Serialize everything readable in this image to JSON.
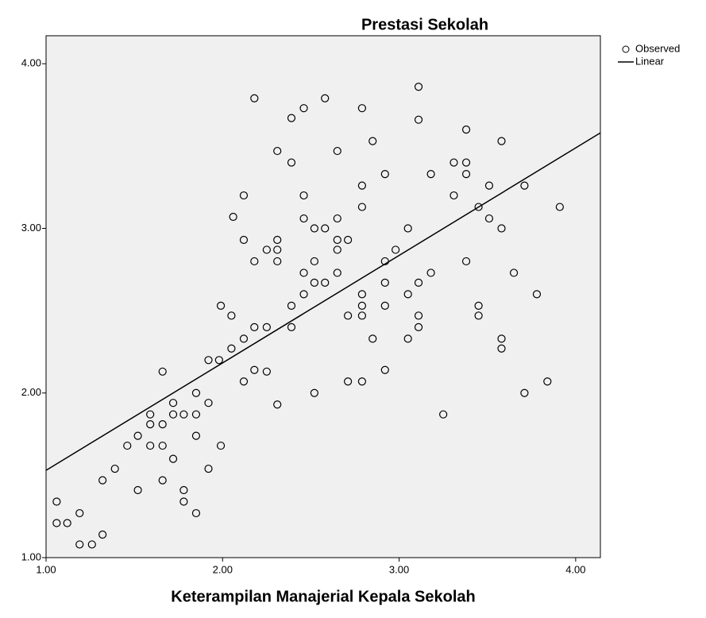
{
  "chart_data": {
    "type": "scatter",
    "title": "Prestasi Sekolah",
    "xlabel": "Keterampilan Manajerial Kepala Sekolah",
    "xlim": [
      1,
      4.14
    ],
    "ylim": [
      1,
      4.17
    ],
    "xticks": [
      {
        "value": 1,
        "label": "1.00"
      },
      {
        "value": 2,
        "label": "2.00"
      },
      {
        "value": 3,
        "label": "3.00"
      },
      {
        "value": 4,
        "label": "4.00"
      }
    ],
    "yticks": [
      {
        "value": 1,
        "label": "1.00"
      },
      {
        "value": 2,
        "label": "2.00"
      },
      {
        "value": 3,
        "label": "3.00"
      },
      {
        "value": 4,
        "label": "4.00"
      }
    ],
    "grid": false,
    "legend": "right",
    "background": "#f0f0f0",
    "series": [
      {
        "name": "Observed",
        "color": "#000000",
        "x": [
          1.06,
          1.06,
          1.12,
          1.19,
          1.19,
          1.26,
          1.32,
          1.32,
          1.39,
          1.46,
          1.52,
          1.52,
          1.59,
          1.59,
          1.59,
          1.66,
          1.66,
          1.66,
          1.66,
          1.72,
          1.72,
          1.72,
          1.78,
          1.78,
          1.78,
          1.85,
          1.85,
          1.85,
          1.85,
          1.92,
          1.92,
          1.92,
          1.98,
          1.99,
          1.99,
          2.05,
          2.05,
          2.12,
          2.12,
          2.12,
          2.12,
          2.06,
          2.18,
          2.18,
          2.18,
          2.18,
          2.25,
          2.25,
          2.25,
          2.31,
          2.31,
          2.31,
          2.31,
          2.31,
          2.39,
          2.39,
          2.39,
          2.39,
          2.46,
          2.46,
          2.46,
          2.46,
          2.46,
          2.52,
          2.52,
          2.52,
          2.52,
          2.58,
          2.58,
          2.58,
          2.65,
          2.65,
          2.65,
          2.65,
          2.65,
          2.71,
          2.71,
          2.71,
          2.79,
          2.79,
          2.79,
          2.79,
          2.79,
          2.79,
          2.79,
          2.85,
          2.85,
          2.92,
          2.92,
          2.92,
          2.92,
          2.92,
          2.98,
          3.05,
          3.05,
          3.05,
          3.11,
          3.11,
          3.11,
          3.11,
          3.11,
          3.18,
          3.18,
          3.25,
          3.31,
          3.31,
          3.38,
          3.38,
          3.38,
          3.38,
          3.45,
          3.45,
          3.45,
          3.51,
          3.51,
          3.58,
          3.58,
          3.58,
          3.58,
          3.65,
          3.71,
          3.71,
          3.78,
          3.84,
          3.91
        ],
        "values": [
          1.34,
          1.21,
          1.21,
          1.27,
          1.08,
          1.08,
          1.14,
          1.47,
          1.54,
          1.68,
          1.74,
          1.41,
          1.81,
          1.87,
          1.68,
          1.68,
          1.81,
          1.47,
          2.13,
          1.87,
          1.94,
          1.6,
          1.87,
          1.41,
          1.34,
          1.74,
          1.87,
          2.0,
          1.27,
          2.2,
          1.94,
          1.54,
          2.2,
          2.53,
          1.68,
          2.27,
          2.47,
          2.33,
          2.07,
          2.93,
          3.2,
          3.07,
          2.4,
          2.8,
          3.79,
          2.14,
          2.87,
          2.4,
          2.13,
          2.93,
          2.87,
          2.8,
          3.47,
          1.93,
          3.4,
          3.67,
          2.53,
          2.4,
          3.73,
          3.2,
          3.06,
          2.73,
          2.6,
          2.8,
          2.67,
          3.0,
          2.0,
          3.0,
          2.67,
          3.79,
          3.06,
          2.93,
          2.87,
          2.73,
          3.47,
          2.93,
          2.47,
          2.07,
          3.26,
          3.13,
          2.6,
          2.53,
          2.47,
          2.07,
          3.73,
          2.33,
          3.53,
          3.33,
          2.8,
          2.67,
          2.53,
          2.14,
          2.87,
          3.0,
          2.6,
          2.33,
          3.86,
          3.66,
          2.67,
          2.47,
          2.4,
          3.33,
          2.73,
          1.87,
          3.4,
          3.2,
          3.6,
          3.33,
          3.4,
          2.8,
          3.13,
          2.53,
          2.47,
          3.06,
          3.26,
          3.53,
          3.0,
          2.33,
          2.27,
          2.73,
          3.26,
          2.0,
          2.6,
          2.07,
          3.13
        ]
      },
      {
        "name": "Linear",
        "color": "#000000",
        "x": [
          1,
          4.14
        ],
        "values": [
          1.53,
          3.58
        ]
      }
    ]
  }
}
